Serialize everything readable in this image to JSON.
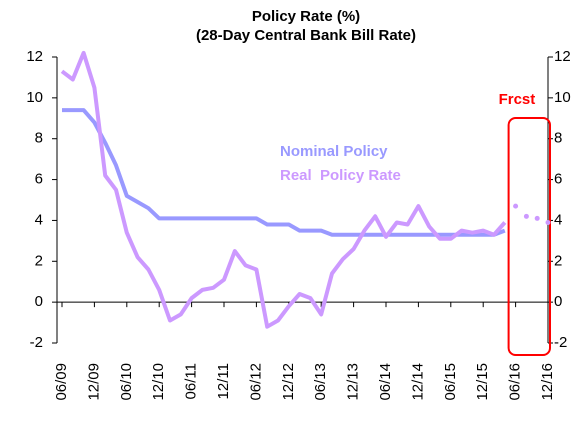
{
  "chart_data": {
    "type": "line",
    "title": "Policy Rate (%)",
    "subtitle": "(28-Day Central Bank Bill Rate)",
    "categories": [
      "06/09",
      null,
      null,
      "12/09",
      null,
      null,
      "06/10",
      null,
      null,
      "12/10",
      null,
      null,
      "06/11",
      null,
      null,
      "12/11",
      null,
      null,
      "06/12",
      null,
      null,
      "12/12",
      null,
      null,
      "06/13",
      null,
      null,
      "12/13",
      null,
      null,
      "06/14",
      null,
      null,
      "12/14",
      null,
      null,
      "06/15",
      null,
      null,
      "12/15",
      null,
      null,
      "06/16",
      null,
      null,
      "12/16"
    ],
    "series": [
      {
        "name": "Nominal Policy",
        "color": "#9999ff",
        "values": [
          9.4,
          9.4,
          9.4,
          8.8,
          7.8,
          6.7,
          5.2,
          4.9,
          4.6,
          4.1,
          4.1,
          4.1,
          4.1,
          4.1,
          4.1,
          4.1,
          4.1,
          4.1,
          4.1,
          3.8,
          3.8,
          3.8,
          3.5,
          3.5,
          3.5,
          3.3,
          3.3,
          3.3,
          3.3,
          3.3,
          3.3,
          3.3,
          3.3,
          3.3,
          3.3,
          3.3,
          3.3,
          3.3,
          3.3,
          3.3,
          3.3,
          3.5,
          null,
          null,
          null,
          null
        ]
      },
      {
        "name": "Real  Policy Rate",
        "color": "#cc99ff",
        "values": [
          11.3,
          10.9,
          12.2,
          10.5,
          6.2,
          5.5,
          3.4,
          2.2,
          1.6,
          0.6,
          -0.9,
          -0.6,
          0.2,
          0.6,
          0.7,
          1.1,
          2.5,
          1.8,
          1.6,
          -1.2,
          -0.9,
          -0.2,
          0.4,
          0.2,
          -0.6,
          1.4,
          2.1,
          2.6,
          3.5,
          4.2,
          3.2,
          3.9,
          3.8,
          4.7,
          3.7,
          3.1,
          3.1,
          3.5,
          3.4,
          3.5,
          3.3,
          3.9,
          4.7,
          4.2,
          4.1,
          3.9
        ]
      }
    ],
    "forecast_from": 42,
    "forecast_label": "Frcst",
    "ylim": [
      -2,
      12
    ],
    "yticks": [
      -2,
      0,
      2,
      4,
      6,
      8,
      10,
      12
    ],
    "y2lim": [
      -2,
      12
    ],
    "y2ticks": [
      -2,
      0,
      2,
      4,
      6,
      8,
      10,
      12
    ]
  }
}
